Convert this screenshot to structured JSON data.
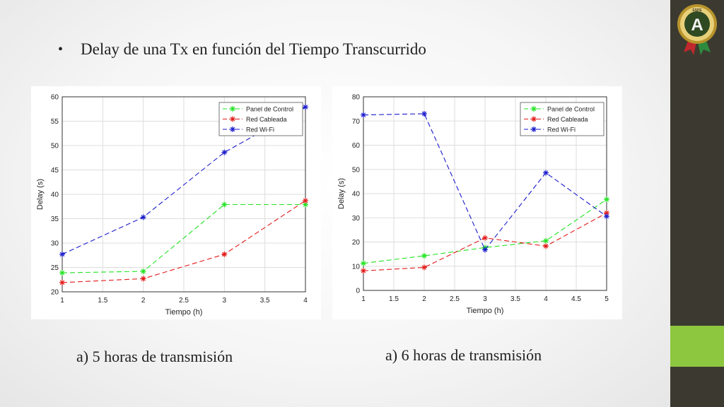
{
  "slide": {
    "bullet": "•",
    "heading": "Delay de una Tx en función del Tiempo Transcurrido",
    "caption_left": "a) 5 horas de transmisión",
    "caption_right": "a) 6 horas de transmisión"
  },
  "logo": {
    "icon": "espe-badge-icon",
    "letter": "A",
    "top_text": "ESPE"
  },
  "colors": {
    "sidebar": "#3c3a30",
    "accent": "#8dc63f",
    "panel_de_control": "#22e322",
    "red_cableada": "#e31a1a",
    "red_wifi": "#1a1acc"
  },
  "chart_data": [
    {
      "type": "line",
      "title": "",
      "xlabel": "Tiempo (h)",
      "ylabel": "Delay (s)",
      "xlim": [
        1,
        4
      ],
      "ylim": [
        20,
        60
      ],
      "xticks": [
        "1",
        "1.5",
        "2",
        "2.5",
        "3",
        "3.5",
        "4"
      ],
      "yticks": [
        "20",
        "25",
        "30",
        "35",
        "40",
        "45",
        "50",
        "55",
        "60"
      ],
      "grid": true,
      "legend_position": "top-right",
      "x": [
        1,
        2,
        3,
        4
      ],
      "series": [
        {
          "name": "Panel de Control",
          "values": [
            23.9,
            24.2,
            37.9,
            37.9
          ],
          "color": "#22e322"
        },
        {
          "name": "Red Cableada",
          "values": [
            21.9,
            22.7,
            27.7,
            38.7
          ],
          "color": "#e31a1a"
        },
        {
          "name": "Red Wi-Fi",
          "values": [
            27.7,
            35.3,
            48.6,
            57.9
          ],
          "color": "#1a1acc"
        }
      ]
    },
    {
      "type": "line",
      "title": "",
      "xlabel": "Tiempo (h)",
      "ylabel": "Delay (s)",
      "xlim": [
        1,
        5
      ],
      "ylim": [
        0,
        80
      ],
      "xticks": [
        "1",
        "1.5",
        "2",
        "2.5",
        "3",
        "3.5",
        "4",
        "4.5",
        "5"
      ],
      "yticks": [
        "0",
        "10",
        "20",
        "30",
        "40",
        "50",
        "60",
        "70",
        "80"
      ],
      "grid": true,
      "legend_position": "top-right",
      "x": [
        1,
        2,
        3,
        4,
        5
      ],
      "series": [
        {
          "name": "Panel de Control",
          "values": [
            11.2,
            14.3,
            17.7,
            20.5,
            37.6
          ],
          "color": "#22e322"
        },
        {
          "name": "Red Cableada",
          "values": [
            8.1,
            9.5,
            21.7,
            18.3,
            32.0
          ],
          "color": "#e31a1a"
        },
        {
          "name": "Red Wi-Fi",
          "values": [
            72.5,
            73.0,
            16.8,
            48.6,
            30.6
          ],
          "color": "#1a1acc"
        }
      ]
    }
  ]
}
